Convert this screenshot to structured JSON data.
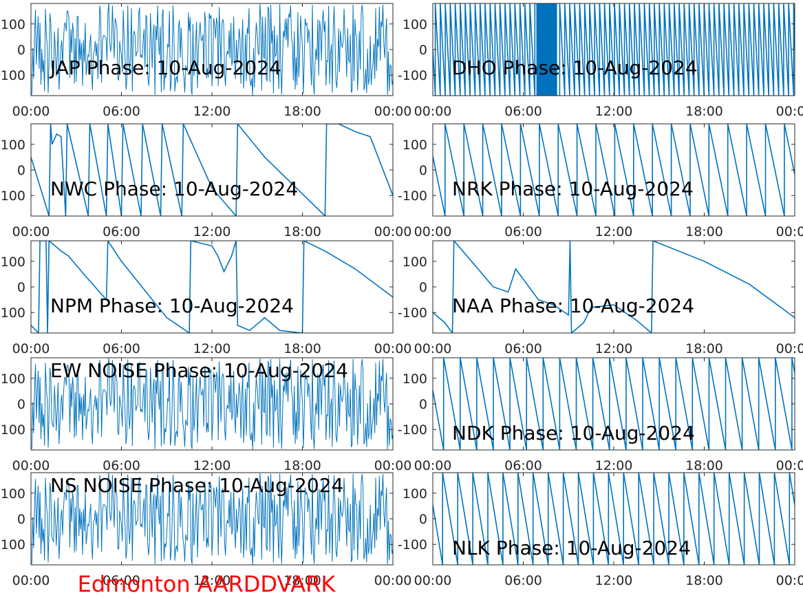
{
  "figure": {
    "title": "Edmonton AARDDVARK",
    "title_color": "#ff0000"
  },
  "chart_data": [
    {
      "type": "line",
      "title": "JAP Phase: 10-Aug-2024",
      "x": {
        "ticks": [
          "00:00",
          "06:00",
          "12:00",
          "18:00",
          "00:00"
        ],
        "range_hours": [
          0,
          24
        ]
      },
      "y": {
        "ticks": [
          "100",
          "0",
          "-100"
        ],
        "ylim": [
          -180,
          180
        ]
      },
      "series": [
        {
          "pattern": "noise",
          "density": 400
        }
      ],
      "color": "#0072bd"
    },
    {
      "type": "line",
      "title": "DHO Phase: 10-Aug-2024",
      "x": {
        "ticks": [
          "00:00",
          "06:00",
          "12:00",
          "18:00",
          "00:00"
        ],
        "range_hours": [
          0,
          24
        ]
      },
      "y": {
        "ticks": [
          "100",
          "0",
          "-100"
        ],
        "ylim": [
          -180,
          180
        ]
      },
      "series": [
        {
          "pattern": "fast-sawtooth",
          "period_hours": 0.33,
          "dense_band_hours": [
            6.9,
            8.2
          ]
        }
      ],
      "color": "#0072bd"
    },
    {
      "type": "line",
      "title": "NWC Phase: 10-Aug-2024",
      "x": {
        "ticks": [
          "00:00",
          "06:00",
          "12:00",
          "18:00",
          "00:00"
        ],
        "range_hours": [
          0,
          24
        ]
      },
      "y": {
        "ticks": [
          "100",
          "0",
          "-100"
        ],
        "ylim": [
          -180,
          180
        ]
      },
      "series": [
        {
          "pattern": "keypoints",
          "values": [
            [
              0,
              50
            ],
            [
              1.2,
              -180
            ],
            [
              1.3,
              180
            ],
            [
              1.4,
              100
            ],
            [
              1.7,
              140
            ],
            [
              2.0,
              130
            ],
            [
              2.3,
              -180
            ],
            [
              2.4,
              180
            ],
            [
              3.8,
              -180
            ],
            [
              3.9,
              180
            ],
            [
              5.0,
              -180
            ],
            [
              5.1,
              180
            ],
            [
              6.0,
              -180
            ],
            [
              6.1,
              180
            ],
            [
              7.3,
              -180
            ],
            [
              7.4,
              180
            ],
            [
              8.6,
              -180
            ],
            [
              8.7,
              180
            ],
            [
              10.0,
              -180
            ],
            [
              10.1,
              180
            ],
            [
              12.0,
              -70
            ],
            [
              13.6,
              -180
            ],
            [
              13.7,
              180
            ],
            [
              15.5,
              50
            ],
            [
              19.5,
              -180
            ],
            [
              19.6,
              180
            ],
            [
              20.4,
              180
            ],
            [
              21.5,
              150
            ],
            [
              22.5,
              130
            ],
            [
              24.0,
              -100
            ]
          ]
        }
      ],
      "color": "#0072bd"
    },
    {
      "type": "line",
      "title": "NRK Phase: 10-Aug-2024",
      "x": {
        "ticks": [
          "00:00",
          "06:00",
          "12:00",
          "18:00",
          "00:00"
        ],
        "range_hours": [
          0,
          24
        ]
      },
      "y": {
        "ticks": [
          "100",
          "0",
          "-100"
        ],
        "ylim": [
          -180,
          180
        ]
      },
      "series": [
        {
          "pattern": "sawtooth",
          "period_hours": 1.25
        }
      ],
      "color": "#0072bd"
    },
    {
      "type": "line",
      "title": "NPM Phase: 10-Aug-2024",
      "x": {
        "ticks": [
          "00:00",
          "06:00",
          "12:00",
          "18:00",
          "00:00"
        ],
        "range_hours": [
          0,
          24
        ]
      },
      "y": {
        "ticks": [
          "100",
          "0",
          "-100"
        ],
        "ylim": [
          -180,
          180
        ]
      },
      "series": [
        {
          "pattern": "keypoints",
          "values": [
            [
              0,
              -150
            ],
            [
              0.5,
              -180
            ],
            [
              0.6,
              180
            ],
            [
              1.0,
              180
            ],
            [
              1.1,
              -180
            ],
            [
              1.2,
              180
            ],
            [
              2.0,
              140
            ],
            [
              2.5,
              120
            ],
            [
              3.5,
              50
            ],
            [
              5.0,
              -50
            ],
            [
              5.1,
              180
            ],
            [
              6.0,
              100
            ],
            [
              7.5,
              -10
            ],
            [
              9.0,
              -120
            ],
            [
              10.5,
              -180
            ],
            [
              10.6,
              180
            ],
            [
              12.0,
              160
            ],
            [
              12.4,
              120
            ],
            [
              12.8,
              60
            ],
            [
              13.3,
              120
            ],
            [
              13.6,
              180
            ],
            [
              13.7,
              -150
            ],
            [
              14.5,
              -170
            ],
            [
              15.5,
              -120
            ],
            [
              16.5,
              -170
            ],
            [
              18.0,
              -180
            ],
            [
              18.1,
              180
            ],
            [
              19.5,
              140
            ],
            [
              21.5,
              70
            ],
            [
              24.0,
              -40
            ]
          ]
        }
      ],
      "color": "#0072bd"
    },
    {
      "type": "line",
      "title": "NAA Phase: 10-Aug-2024",
      "x": {
        "ticks": [
          "00:00",
          "06:00",
          "12:00",
          "18:00",
          "00:00"
        ],
        "range_hours": [
          0,
          24
        ]
      },
      "y": {
        "ticks": [
          "100",
          "0",
          "-100"
        ],
        "ylim": [
          -180,
          180
        ]
      },
      "series": [
        {
          "pattern": "keypoints",
          "values": [
            [
              0,
              -100
            ],
            [
              0.8,
              -140
            ],
            [
              1.3,
              -180
            ],
            [
              1.4,
              180
            ],
            [
              3.0,
              70
            ],
            [
              4.0,
              0
            ],
            [
              5.0,
              -20
            ],
            [
              5.5,
              70
            ],
            [
              6.0,
              30
            ],
            [
              7.0,
              -50
            ],
            [
              8.0,
              -70
            ],
            [
              9.0,
              -110
            ],
            [
              9.1,
              180
            ],
            [
              9.2,
              -180
            ],
            [
              10.0,
              -140
            ],
            [
              10.5,
              -80
            ],
            [
              12.0,
              -70
            ],
            [
              13.5,
              -130
            ],
            [
              14.5,
              -180
            ],
            [
              14.6,
              180
            ],
            [
              18.0,
              100
            ],
            [
              21.0,
              10
            ],
            [
              24.0,
              -120
            ]
          ]
        }
      ],
      "color": "#0072bd"
    },
    {
      "type": "line",
      "title": "EW NOISE Phase: 10-Aug-2024",
      "x": {
        "ticks": [
          "00:00",
          "06:00",
          "12:00",
          "18:00",
          "00:00"
        ],
        "range_hours": [
          0,
          24
        ]
      },
      "y": {
        "ticks": [
          "100",
          "0",
          "-100"
        ],
        "ylim": [
          -180,
          180
        ]
      },
      "series": [
        {
          "pattern": "noise",
          "density": 400
        }
      ],
      "color": "#0072bd"
    },
    {
      "type": "line",
      "title": "NDK Phase: 10-Aug-2024",
      "x": {
        "ticks": [
          "00:00",
          "06:00",
          "12:00",
          "18:00",
          "00:00"
        ],
        "range_hours": [
          0,
          24
        ]
      },
      "y": {
        "ticks": [
          "100",
          "0",
          "-100"
        ],
        "ylim": [
          -180,
          180
        ]
      },
      "series": [
        {
          "pattern": "sawtooth",
          "period_hours": 1.1
        }
      ],
      "color": "#0072bd"
    },
    {
      "type": "line",
      "title": "NS NOISE Phase: 10-Aug-2024",
      "x": {
        "ticks": [
          "00:00",
          "06:00",
          "12:00",
          "18:00",
          "00:00"
        ],
        "range_hours": [
          0,
          24
        ]
      },
      "y": {
        "ticks": [
          "100",
          "0",
          "-100"
        ],
        "ylim": [
          -180,
          180
        ]
      },
      "series": [
        {
          "pattern": "noise",
          "density": 400
        }
      ],
      "color": "#0072bd"
    },
    {
      "type": "line",
      "title": "NLK Phase: 10-Aug-2024",
      "x": {
        "ticks": [
          "00:00",
          "06:00",
          "12:00",
          "18:00",
          "00:00"
        ],
        "range_hours": [
          0,
          24
        ]
      },
      "y": {
        "ticks": [
          "100",
          "0",
          "-100"
        ],
        "ylim": [
          -180,
          180
        ]
      },
      "series": [
        {
          "pattern": "sawtooth",
          "period_hours": 1.0
        }
      ],
      "color": "#0072bd"
    }
  ]
}
